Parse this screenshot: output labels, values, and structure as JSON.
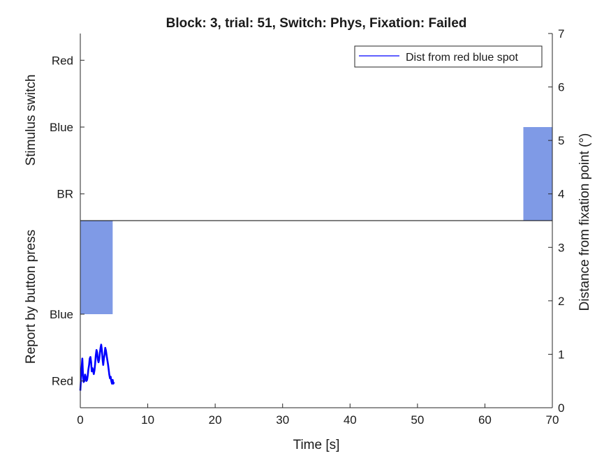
{
  "chart_data": {
    "type": "line",
    "title": "Block: 3, trial: 51, Switch: Phys, Fixation: Failed",
    "xlabel": "Time [s]",
    "xlim": [
      0,
      70
    ],
    "x_ticks": [
      "0",
      "10",
      "20",
      "30",
      "40",
      "50",
      "60",
      "70"
    ],
    "y_right": {
      "label": "Distance from fixation point (°)",
      "lim": [
        0,
        7
      ],
      "ticks": [
        "0",
        "1",
        "2",
        "3",
        "4",
        "5",
        "6",
        "7"
      ]
    },
    "upper_panel": {
      "label": "Stimulus switch",
      "ticks": [
        {
          "label": "Red",
          "value": 6.5
        },
        {
          "label": "Blue",
          "value": 5.25
        },
        {
          "label": "BR",
          "value": 4.0
        }
      ]
    },
    "lower_panel": {
      "label": "Report by button press",
      "ticks": [
        {
          "label": "Blue",
          "value": 1.75
        },
        {
          "label": "Red",
          "value": 0.5
        }
      ]
    },
    "divider_y": 3.5,
    "blocks": [
      {
        "panel": "stimulus",
        "state": "Blue",
        "x_start": 65.7,
        "x_end": 70.5,
        "y_from": 3.5,
        "y_to": 5.25
      },
      {
        "panel": "report",
        "state": "Blue",
        "x_start": 0,
        "x_end": 4.8,
        "y_from": 1.75,
        "y_to": 3.5
      }
    ],
    "series": [
      {
        "name": "Dist from red blue spot",
        "color": "#0000ff",
        "x": [
          0,
          0.1,
          0.2,
          0.3,
          0.4,
          0.5,
          0.6,
          0.7,
          0.8,
          0.9,
          1.0,
          1.1,
          1.2,
          1.3,
          1.4,
          1.5,
          1.6,
          1.7,
          1.8,
          1.9,
          2.0,
          2.1,
          2.2,
          2.3,
          2.4,
          2.5,
          2.6,
          2.7,
          2.8,
          2.9,
          3.0,
          3.1,
          3.2,
          3.3,
          3.4,
          3.5,
          3.6,
          3.7,
          3.8,
          3.9,
          4.0,
          4.1,
          4.2,
          4.3,
          4.4,
          4.5,
          4.6,
          4.7,
          4.8,
          4.9,
          5.0
        ],
        "values": [
          0.32,
          0.55,
          0.75,
          0.92,
          0.6,
          0.48,
          0.5,
          0.62,
          0.58,
          0.5,
          0.52,
          0.6,
          0.72,
          0.8,
          0.92,
          0.95,
          0.85,
          0.68,
          0.74,
          0.7,
          0.63,
          0.7,
          0.82,
          0.98,
          1.08,
          1.04,
          0.9,
          0.85,
          0.9,
          1.02,
          1.12,
          1.18,
          1.08,
          0.9,
          0.8,
          0.92,
          1.0,
          1.12,
          1.07,
          0.98,
          0.9,
          0.82,
          0.72,
          0.62,
          0.55,
          0.58,
          0.5,
          0.45,
          0.52,
          0.45,
          0.48
        ]
      }
    ],
    "legend": {
      "placement": "top-right",
      "entries": [
        "Dist from red blue spot"
      ]
    },
    "colors": {
      "block_fill": "#7f9ae6",
      "line": "#0000ff"
    }
  }
}
